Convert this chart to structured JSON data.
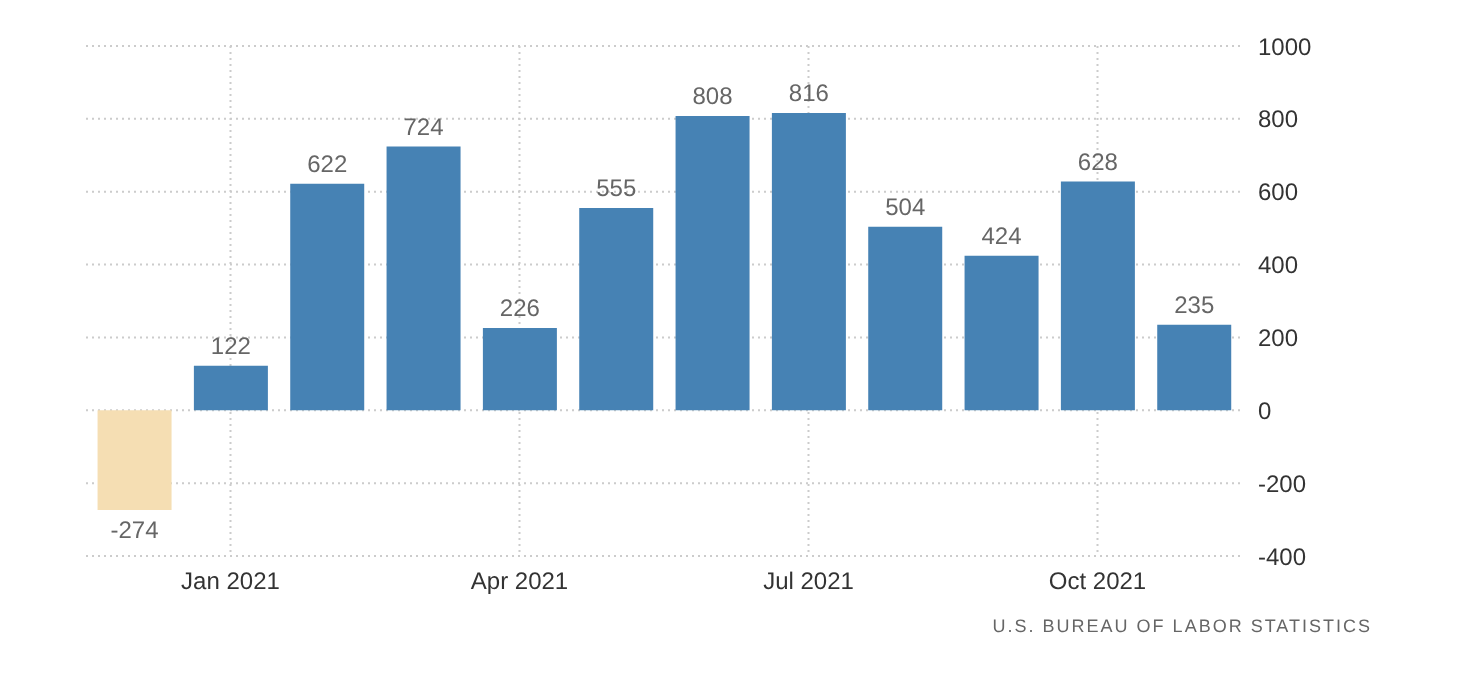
{
  "chart_data": {
    "type": "bar",
    "categories": [
      null,
      "Jan 2021",
      null,
      null,
      "Apr 2021",
      null,
      null,
      "Jul 2021",
      null,
      null,
      "Oct 2021",
      null
    ],
    "values": [
      -274,
      122,
      622,
      724,
      226,
      555,
      808,
      816,
      504,
      424,
      628,
      235
    ],
    "colors": [
      "#f5deb3",
      "#4682b4",
      "#4682b4",
      "#4682b4",
      "#4682b4",
      "#4682b4",
      "#4682b4",
      "#4682b4",
      "#4682b4",
      "#4682b4",
      "#4682b4",
      "#4682b4"
    ],
    "ylim": [
      -400,
      1000
    ],
    "yticks": [
      -400,
      -200,
      0,
      200,
      400,
      600,
      800,
      1000
    ],
    "grid": true,
    "data_labels": true,
    "annotations": [
      "U.S. BUREAU OF LABOR STATISTICS"
    ]
  }
}
